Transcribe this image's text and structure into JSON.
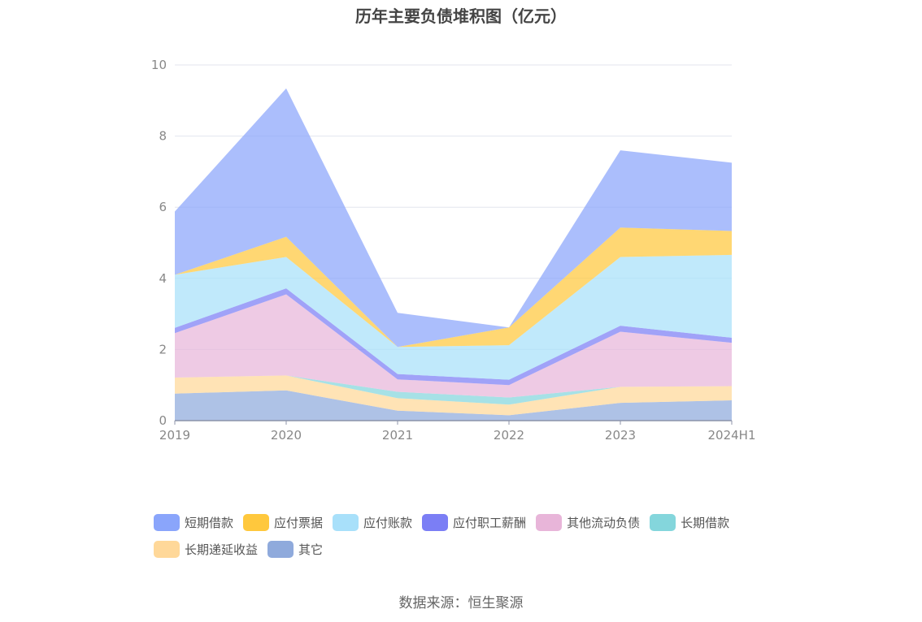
{
  "chart_data": {
    "type": "area",
    "stacked": true,
    "title": "历年主要负债堆积图（亿元）",
    "categories": [
      "2019",
      "2020",
      "2021",
      "2022",
      "2023",
      "2024H1"
    ],
    "ylim": [
      0,
      10
    ],
    "yticks": [
      0,
      2,
      4,
      6,
      8,
      10
    ],
    "grid": true,
    "legend_position": "bottom",
    "series": [
      {
        "name": "其它",
        "color": "#8faadc",
        "values": [
          0.76,
          0.85,
          0.28,
          0.15,
          0.5,
          0.57
        ]
      },
      {
        "name": "长期递延收益",
        "color": "#ffd899",
        "values": [
          0.45,
          0.42,
          0.35,
          0.3,
          0.45,
          0.4
        ]
      },
      {
        "name": "长期借款",
        "color": "#84d6dc",
        "values": [
          0.0,
          0.0,
          0.18,
          0.2,
          0.0,
          0.0
        ]
      },
      {
        "name": "其他流动负债",
        "color": "#e8b5d9",
        "values": [
          1.25,
          2.28,
          0.35,
          0.35,
          1.55,
          1.22
        ]
      },
      {
        "name": "应付职工薪酬",
        "color": "#7b7ef5",
        "values": [
          0.15,
          0.17,
          0.15,
          0.15,
          0.17,
          0.14
        ]
      },
      {
        "name": "应付账款",
        "color": "#a8e0fa",
        "values": [
          1.49,
          0.88,
          0.76,
          0.97,
          1.93,
          2.33
        ]
      },
      {
        "name": "应付票据",
        "color": "#ffc83d",
        "values": [
          0.0,
          0.57,
          0.0,
          0.5,
          0.83,
          0.67
        ]
      },
      {
        "name": "短期借款",
        "color": "#8aa5fb",
        "values": [
          1.78,
          4.17,
          0.96,
          0.0,
          2.17,
          1.92
        ]
      }
    ],
    "legend_order": [
      "短期借款",
      "应付票据",
      "应付账款",
      "应付职工薪酬",
      "其他流动负债",
      "长期借款",
      "长期递延收益",
      "其它"
    ]
  },
  "source_text": "数据来源：恒生聚源"
}
